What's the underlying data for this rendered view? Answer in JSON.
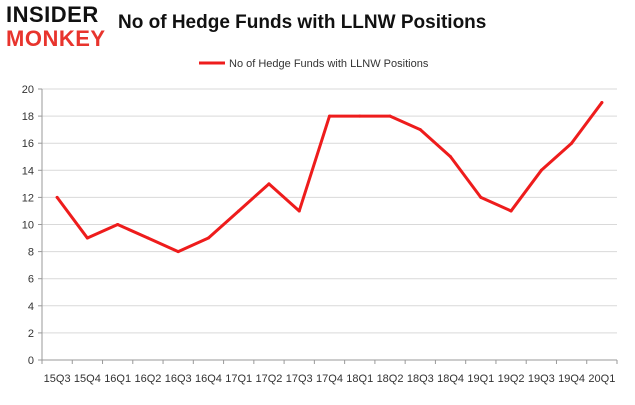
{
  "logo": {
    "line1": "INSIDER",
    "line2": "MONKEY"
  },
  "chart_data": {
    "type": "line",
    "title": "No of Hedge Funds with LLNW Positions",
    "xlabel": "",
    "ylabel": "",
    "ylim": [
      0,
      20
    ],
    "yticks": [
      0,
      2,
      4,
      6,
      8,
      10,
      12,
      14,
      16,
      18,
      20
    ],
    "grid": true,
    "legend_position": "top-center",
    "categories": [
      "15Q3",
      "15Q4",
      "16Q1",
      "16Q2",
      "16Q3",
      "16Q4",
      "17Q1",
      "17Q2",
      "17Q3",
      "17Q4",
      "18Q1",
      "18Q2",
      "18Q3",
      "18Q4",
      "19Q1",
      "19Q2",
      "19Q3",
      "19Q4",
      "20Q1"
    ],
    "series": [
      {
        "name": "No of Hedge Funds with LLNW Positions",
        "color": "#ee1c1c",
        "values": [
          12,
          9,
          10,
          9,
          8,
          9,
          11,
          13,
          11,
          18,
          18,
          18,
          17,
          15,
          12,
          11,
          14,
          16,
          19
        ]
      }
    ]
  }
}
